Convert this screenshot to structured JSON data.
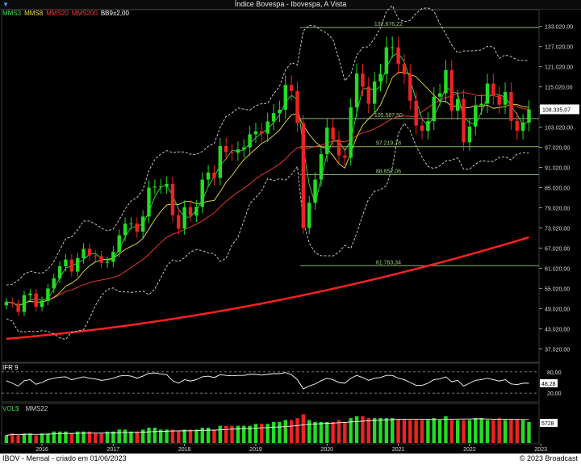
{
  "window": {
    "title": "Índice Bovespa - Ibovespa, A Vista"
  },
  "legend": [
    {
      "label": "MMS3",
      "color": "#33e04a"
    },
    {
      "label": "MMS8",
      "color": "#f0e040"
    },
    {
      "label": "MMS20",
      "color": "#ff3b3b"
    },
    {
      "label": "MMS200",
      "color": "#ff3b3b"
    },
    {
      "label": "BB9±2,00",
      "color": "#ffffff"
    }
  ],
  "footer": {
    "left": "IBOV - Mensal - criado em 01/06/2023",
    "right": "© 2023 Broadcast"
  },
  "ifr": {
    "label": "IFR 9",
    "ticks": [
      "80,00",
      "20,00"
    ],
    "last": "48,28"
  },
  "volume": {
    "label1": "VOL$",
    "label2": "MMS22",
    "last": "5728"
  },
  "colors": {
    "up": "#22dd22",
    "down": "#ee2222",
    "grid": "#8ab56a",
    "bg": "#000000"
  },
  "chart_data": {
    "type": "candlestick",
    "title": "Índice Bovespa - Ibovespa, A Vista",
    "y_ticks": [
      "37.020,00",
      "43.020,00",
      "49.020,00",
      "55.020,00",
      "61.020,00",
      "67.020,00",
      "73.020,00",
      "79.020,00",
      "85.020,00",
      "91.020,00",
      "97.020,00",
      "103.020,00",
      "109.020,00",
      "115.020,00",
      "121.020,00",
      "127.020,00",
      "133.020,00"
    ],
    "ylim": [
      33000,
      138000
    ],
    "x_ticks": [
      "2016",
      "2017",
      "2018",
      "2019",
      "2020",
      "2021",
      "2022",
      "2023"
    ],
    "last_value": "108.335,07",
    "fib_levels": [
      {
        "value": 132676.22,
        "label": "132.676,22"
      },
      {
        "value": 105587.5,
        "label": "105.587,50"
      },
      {
        "value": 97219.78,
        "label": "97.219,78"
      },
      {
        "value": 88852.06,
        "label": "88.852,06"
      },
      {
        "value": 61763.34,
        "label": "61.763,34"
      }
    ],
    "closes": [
      51000,
      50500,
      48000,
      53000,
      53500,
      49500,
      51300,
      55000,
      58000,
      61600,
      63600,
      60000,
      64000,
      66800,
      64800,
      64600,
      62600,
      62900,
      65900,
      70800,
      74300,
      74300,
      71900,
      76400,
      85000,
      85300,
      85400,
      86100,
      76800,
      72800,
      79200,
      76700,
      79300,
      87400,
      89500,
      87900,
      97400,
      95600,
      95400,
      96400,
      97000,
      100900,
      101800,
      101100,
      104700,
      107200,
      108200,
      115600,
      113800,
      104200,
      73000,
      80500,
      87400,
      95000,
      102900,
      99400,
      94600,
      93900,
      108900,
      119000,
      115100,
      110000,
      116600,
      118900,
      126800,
      126800,
      121800,
      118800,
      110900,
      103500,
      101900,
      104800,
      112100,
      113100,
      119999,
      107900,
      111400,
      98500,
      103200,
      109500,
      110000,
      116000,
      112500,
      109700,
      113500,
      104900,
      101900,
      104400,
      108300
    ],
    "ifr": [
      55,
      48,
      40,
      55,
      58,
      45,
      50,
      58,
      62,
      65,
      66,
      58,
      62,
      66,
      62,
      60,
      56,
      58,
      62,
      68,
      70,
      68,
      62,
      68,
      76,
      77,
      74,
      72,
      55,
      48,
      58,
      54,
      58,
      66,
      68,
      64,
      72,
      70,
      69,
      70,
      70,
      73,
      73,
      71,
      73,
      75,
      75,
      78,
      72,
      58,
      32,
      40,
      46,
      55,
      62,
      58,
      50,
      48,
      62,
      70,
      64,
      56,
      62,
      64,
      70,
      70,
      62,
      58,
      50,
      42,
      42,
      48,
      58,
      60,
      66,
      52,
      56,
      40,
      48,
      56,
      58,
      62,
      58,
      54,
      58,
      46,
      44,
      48,
      48
    ],
    "volume": [
      4,
      5,
      4,
      5,
      5,
      4,
      5,
      5,
      6,
      6,
      6,
      5,
      6,
      6,
      6,
      5,
      5,
      6,
      6,
      7,
      7,
      6,
      6,
      7,
      8,
      8,
      7,
      7,
      7,
      6,
      7,
      7,
      7,
      8,
      8,
      7,
      9,
      9,
      9,
      9,
      9,
      9,
      10,
      10,
      10,
      11,
      11,
      12,
      12,
      13,
      15,
      12,
      11,
      11,
      11,
      11,
      12,
      11,
      13,
      14,
      14,
      13,
      13,
      13,
      13,
      13,
      12,
      12,
      12,
      12,
      12,
      12,
      13,
      12,
      14,
      12,
      12,
      12,
      12,
      13,
      13,
      12,
      12,
      13,
      12,
      12,
      12,
      12,
      11
    ]
  }
}
